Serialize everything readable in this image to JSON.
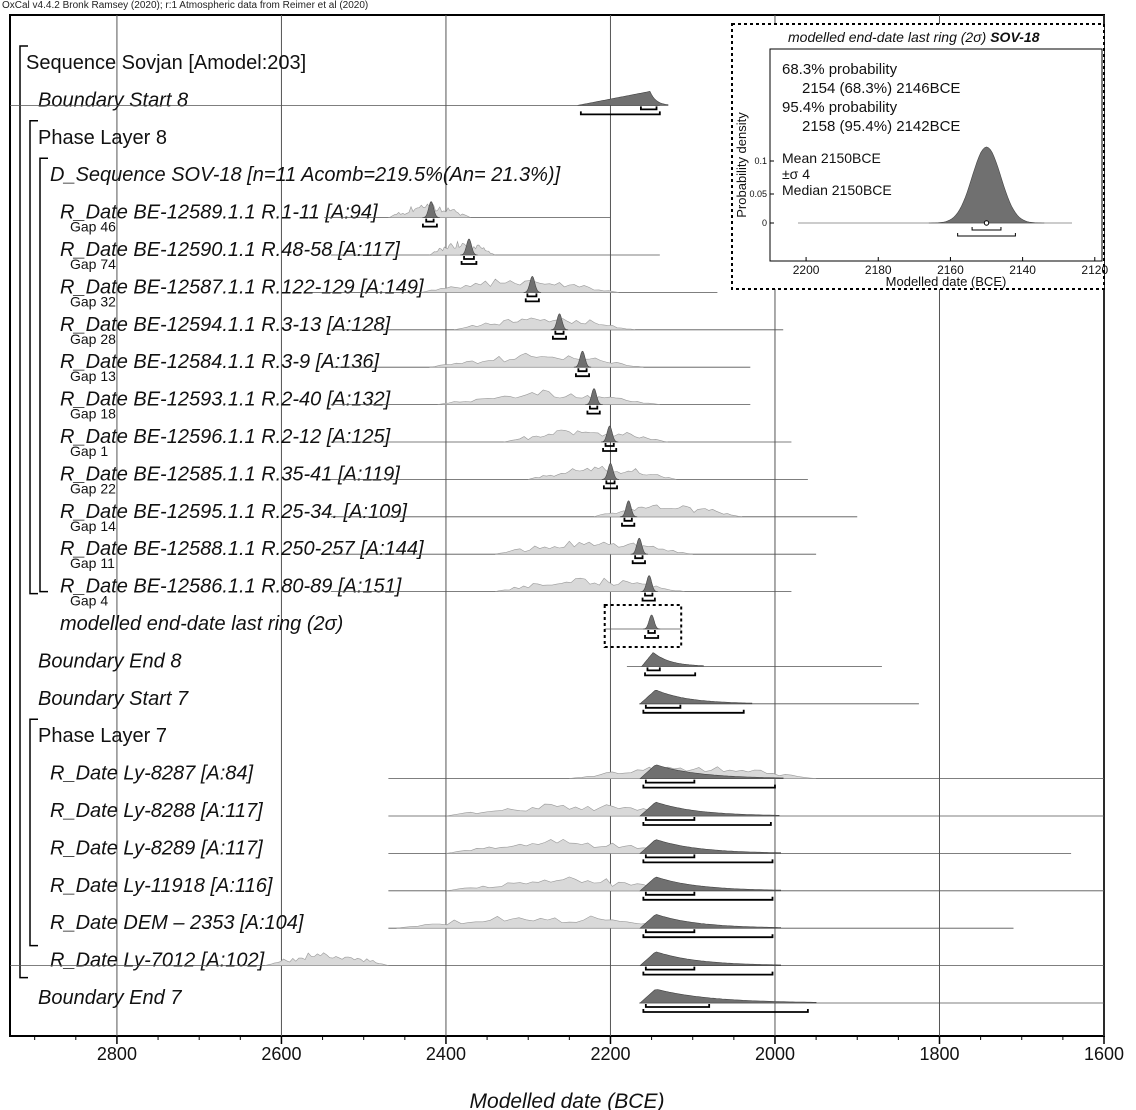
{
  "header": "OxCal v4.4.2 Bronk Ramsey (2020); r:1 Atmospheric data from Reimer et al (2020)",
  "chart_data": {
    "type": "area",
    "xlabel": "Modelled date (BCE)",
    "xlim": [
      2930,
      1600
    ],
    "x_ticks": [
      2800,
      2600,
      2400,
      2200,
      2000,
      1800,
      1600
    ],
    "grid": true,
    "rows": [
      {
        "label": "Sequence Sovjan [Amodel:203]",
        "kind": "header",
        "indent": 0
      },
      {
        "label": "Boundary Start 8",
        "kind": "dist",
        "indent": 1,
        "mean": 2152,
        "post": 4,
        "prior_range": [
          2150,
          2150
        ],
        "r68": [
          2163,
          2144
        ],
        "r95": [
          2236,
          2140
        ],
        "ext": [
          2930,
          2140
        ],
        "prior_shape": "none",
        "gap": ""
      },
      {
        "label": "Phase Layer 8",
        "kind": "header",
        "indent": 1
      },
      {
        "label": "D_Sequence SOV-18 [n=11 Acomb=219.5%(An= 21.3%)]",
        "kind": "header",
        "indent": 2
      },
      {
        "label": "R_Date BE-12589.1.1 R.1-11 [A:94]",
        "kind": "dist",
        "indent": 3,
        "mean": 2418,
        "post": 3,
        "prior_range": [
          2470,
          2370
        ],
        "r68": [
          2424,
          2415
        ],
        "r95": [
          2428,
          2411
        ],
        "ext": [
          2548,
          2200
        ],
        "prior_shape": "wiggle",
        "gap": "Gap 46"
      },
      {
        "label": "R_Date BE-12590.1.1 R.48-58 [A:117]",
        "kind": "dist",
        "indent": 3,
        "mean": 2372,
        "post": 3,
        "prior_range": [
          2420,
          2340
        ],
        "r68": [
          2378,
          2366
        ],
        "r95": [
          2381,
          2363
        ],
        "ext": [
          2540,
          2140
        ],
        "prior_shape": "wiggle",
        "gap": "Gap 74"
      },
      {
        "label": "R_Date BE-12587.1.1 R.122-129 [A:149]",
        "kind": "dist",
        "indent": 3,
        "mean": 2295,
        "post": 3,
        "prior_range": [
          2430,
          2190
        ],
        "r68": [
          2301,
          2290
        ],
        "r95": [
          2303,
          2287
        ],
        "ext": [
          2570,
          2070
        ],
        "prior_shape": "wiggle",
        "gap": "Gap 32"
      },
      {
        "label": "R_Date BE-12594.1.1 R.3-13 [A:128]",
        "kind": "dist",
        "indent": 3,
        "mean": 2262,
        "post": 3,
        "prior_range": [
          2390,
          2170
        ],
        "r68": [
          2267,
          2257
        ],
        "r95": [
          2270,
          2254
        ],
        "ext": [
          2540,
          1990
        ],
        "prior_shape": "wiggle",
        "gap": "Gap 28"
      },
      {
        "label": "R_Date BE-12584.1.1 R.3-9 [A:136]",
        "kind": "dist",
        "indent": 3,
        "mean": 2234,
        "post": 3,
        "prior_range": [
          2420,
          2160
        ],
        "r68": [
          2239,
          2229
        ],
        "r95": [
          2242,
          2226
        ],
        "ext": [
          2540,
          2030
        ],
        "prior_shape": "wiggle",
        "gap": "Gap 13"
      },
      {
        "label": "R_Date BE-12593.1.1 R.2-40 [A:132]",
        "kind": "dist",
        "indent": 3,
        "mean": 2220,
        "post": 3,
        "prior_range": [
          2410,
          2140
        ],
        "r68": [
          2225,
          2216
        ],
        "r95": [
          2228,
          2213
        ],
        "ext": [
          2540,
          2030
        ],
        "prior_shape": "wiggle",
        "gap": "Gap 18"
      },
      {
        "label": "R_Date BE-12596.1.1 R.2-12 [A:125]",
        "kind": "dist",
        "indent": 3,
        "mean": 2201,
        "post": 3,
        "prior_range": [
          2330,
          2130
        ],
        "r68": [
          2206,
          2196
        ],
        "r95": [
          2209,
          2193
        ],
        "ext": [
          2540,
          1980
        ],
        "prior_shape": "wiggle",
        "gap": "Gap 1"
      },
      {
        "label": "R_Date BE-12585.1.1 R.35-41 [A:119]",
        "kind": "dist",
        "indent": 3,
        "mean": 2200,
        "post": 3,
        "prior_range": [
          2300,
          2120
        ],
        "r68": [
          2205,
          2195
        ],
        "r95": [
          2208,
          2192
        ],
        "ext": [
          2540,
          1960
        ],
        "prior_shape": "wiggle",
        "gap": "Gap 22"
      },
      {
        "label": "R_Date BE-12595.1.1 R.25-34. [A:109]",
        "kind": "dist",
        "indent": 3,
        "mean": 2178,
        "post": 3,
        "prior_range": [
          2220,
          2040
        ],
        "r68": [
          2183,
          2174
        ],
        "r95": [
          2186,
          2171
        ],
        "ext": [
          2540,
          1900
        ],
        "prior_shape": "wiggle",
        "gap": "Gap 14"
      },
      {
        "label": "R_Date BE-12588.1.1 R.250-257 [A:144]",
        "kind": "dist",
        "indent": 3,
        "mean": 2165,
        "post": 3,
        "prior_range": [
          2340,
          2100
        ],
        "r68": [
          2170,
          2161
        ],
        "r95": [
          2173,
          2158
        ],
        "ext": [
          2540,
          1950
        ],
        "prior_shape": "wiggle",
        "gap": "Gap 11"
      },
      {
        "label": "R_Date BE-12586.1.1 R.80-89 [A:151]",
        "kind": "dist",
        "indent": 3,
        "mean": 2153,
        "post": 3,
        "prior_range": [
          2340,
          2110
        ],
        "r68": [
          2158,
          2149
        ],
        "r95": [
          2161,
          2146
        ],
        "ext": [
          2540,
          1980
        ],
        "prior_shape": "wiggle",
        "gap": "Gap 4"
      },
      {
        "label": "modelled end-date last ring (2σ)",
        "kind": "dist",
        "indent": 3,
        "mean": 2150,
        "post": 3,
        "prior_range": [
          2150,
          2150
        ],
        "r68": [
          2154,
          2146
        ],
        "r95": [
          2158,
          2142
        ],
        "ext": [
          2207,
          2114
        ],
        "prior_shape": "none",
        "gap": "",
        "box": true
      },
      {
        "label": "Boundary End 8",
        "kind": "dist",
        "indent": 1,
        "mean": 2148,
        "post": 4,
        "prior_range": [
          2150,
          2150
        ],
        "r68": [
          2155,
          2140
        ],
        "r95": [
          2158,
          2097
        ],
        "ext": [
          2180,
          1870
        ],
        "prior_shape": "none",
        "gap": ""
      },
      {
        "label": "Boundary Start 7",
        "kind": "dist",
        "indent": 1,
        "mean": 2145,
        "post": 5,
        "prior_range": [
          2150,
          2150
        ],
        "r68": [
          2157,
          2115
        ],
        "r95": [
          2160,
          2038
        ],
        "ext": [
          2165,
          1825
        ],
        "prior_shape": "none",
        "gap": ""
      },
      {
        "label": "Phase Layer 7",
        "kind": "header",
        "indent": 1
      },
      {
        "label": "R_Date Ly-8287 [A:84]",
        "kind": "dist",
        "indent": 2,
        "mean": 2145,
        "post": 5,
        "prior_range": [
          2250,
          1950
        ],
        "r68": [
          2157,
          2098
        ],
        "r95": [
          2160,
          2000
        ],
        "ext": [
          2470,
          1600
        ],
        "prior_shape": "wiggle",
        "gap": ""
      },
      {
        "label": "R_Date Ly-8288 [A:117]",
        "kind": "dist",
        "indent": 2,
        "mean": 2145,
        "post": 5,
        "prior_range": [
          2400,
          2100
        ],
        "r68": [
          2157,
          2098
        ],
        "r95": [
          2160,
          2005
        ],
        "ext": [
          2470,
          1600
        ],
        "prior_shape": "wiggle",
        "gap": ""
      },
      {
        "label": "R_Date Ly-8289 [A:117]",
        "kind": "dist",
        "indent": 2,
        "mean": 2145,
        "post": 5,
        "prior_range": [
          2400,
          2100
        ],
        "r68": [
          2157,
          2098
        ],
        "r95": [
          2160,
          2003
        ],
        "ext": [
          2470,
          1640
        ],
        "prior_shape": "wiggle",
        "gap": ""
      },
      {
        "label": "R_Date Ly-11918 [A:116]",
        "kind": "dist",
        "indent": 2,
        "mean": 2145,
        "post": 5,
        "prior_range": [
          2400,
          2100
        ],
        "r68": [
          2157,
          2098
        ],
        "r95": [
          2160,
          2003
        ],
        "ext": [
          2470,
          1600
        ],
        "prior_shape": "wiggle",
        "gap": ""
      },
      {
        "label": "R_Date DEM – 2353 [A:104]",
        "kind": "dist",
        "indent": 2,
        "mean": 2145,
        "post": 5,
        "prior_range": [
          2460,
          2110
        ],
        "r68": [
          2157,
          2098
        ],
        "r95": [
          2160,
          2003
        ],
        "ext": [
          2470,
          1710
        ],
        "prior_shape": "wiggle",
        "gap": ""
      },
      {
        "label": "R_Date Ly-7012 [A:102]",
        "kind": "dist",
        "indent": 2,
        "mean": 2145,
        "post": 5,
        "prior_range": [
          2620,
          2470
        ],
        "r68": [
          2157,
          2098
        ],
        "r95": [
          2160,
          2003
        ],
        "ext": [
          2930,
          1600
        ],
        "prior_shape": "wiggle",
        "gap": ""
      },
      {
        "label": "Boundary End 7",
        "kind": "dist",
        "indent": 1,
        "mean": 2145,
        "post": 5,
        "prior_range": [
          2150,
          2150
        ],
        "r68": [
          2157,
          2080
        ],
        "r95": [
          2160,
          1960
        ],
        "ext": [
          2165,
          1600
        ],
        "prior_shape": "none",
        "gap": ""
      }
    ]
  },
  "inset": {
    "title": "modelled end-date last ring (2σ)",
    "title_bold": "SOV-18",
    "p68_label": "68.3% probability",
    "p68_range": "2154 (68.3%) 2146BCE",
    "p95_label": "95.4% probability",
    "p95_range": "2158 (95.4%) 2142BCE",
    "mean": "Mean 2150BCE",
    "sigma": "±σ 4",
    "median": "Median 2150BCE",
    "ylabel": "Probability density",
    "xlabel": "Modelled date (BCE)",
    "x_ticks": [
      2200,
      2180,
      2160,
      2140,
      2120
    ],
    "y_ticks": [
      "0.1",
      "0.05",
      "0"
    ],
    "xlim": [
      2210,
      2118
    ],
    "mean_value": 2150,
    "sd": 4,
    "r68": [
      2154,
      2146
    ],
    "r95": [
      2158,
      2142
    ]
  }
}
